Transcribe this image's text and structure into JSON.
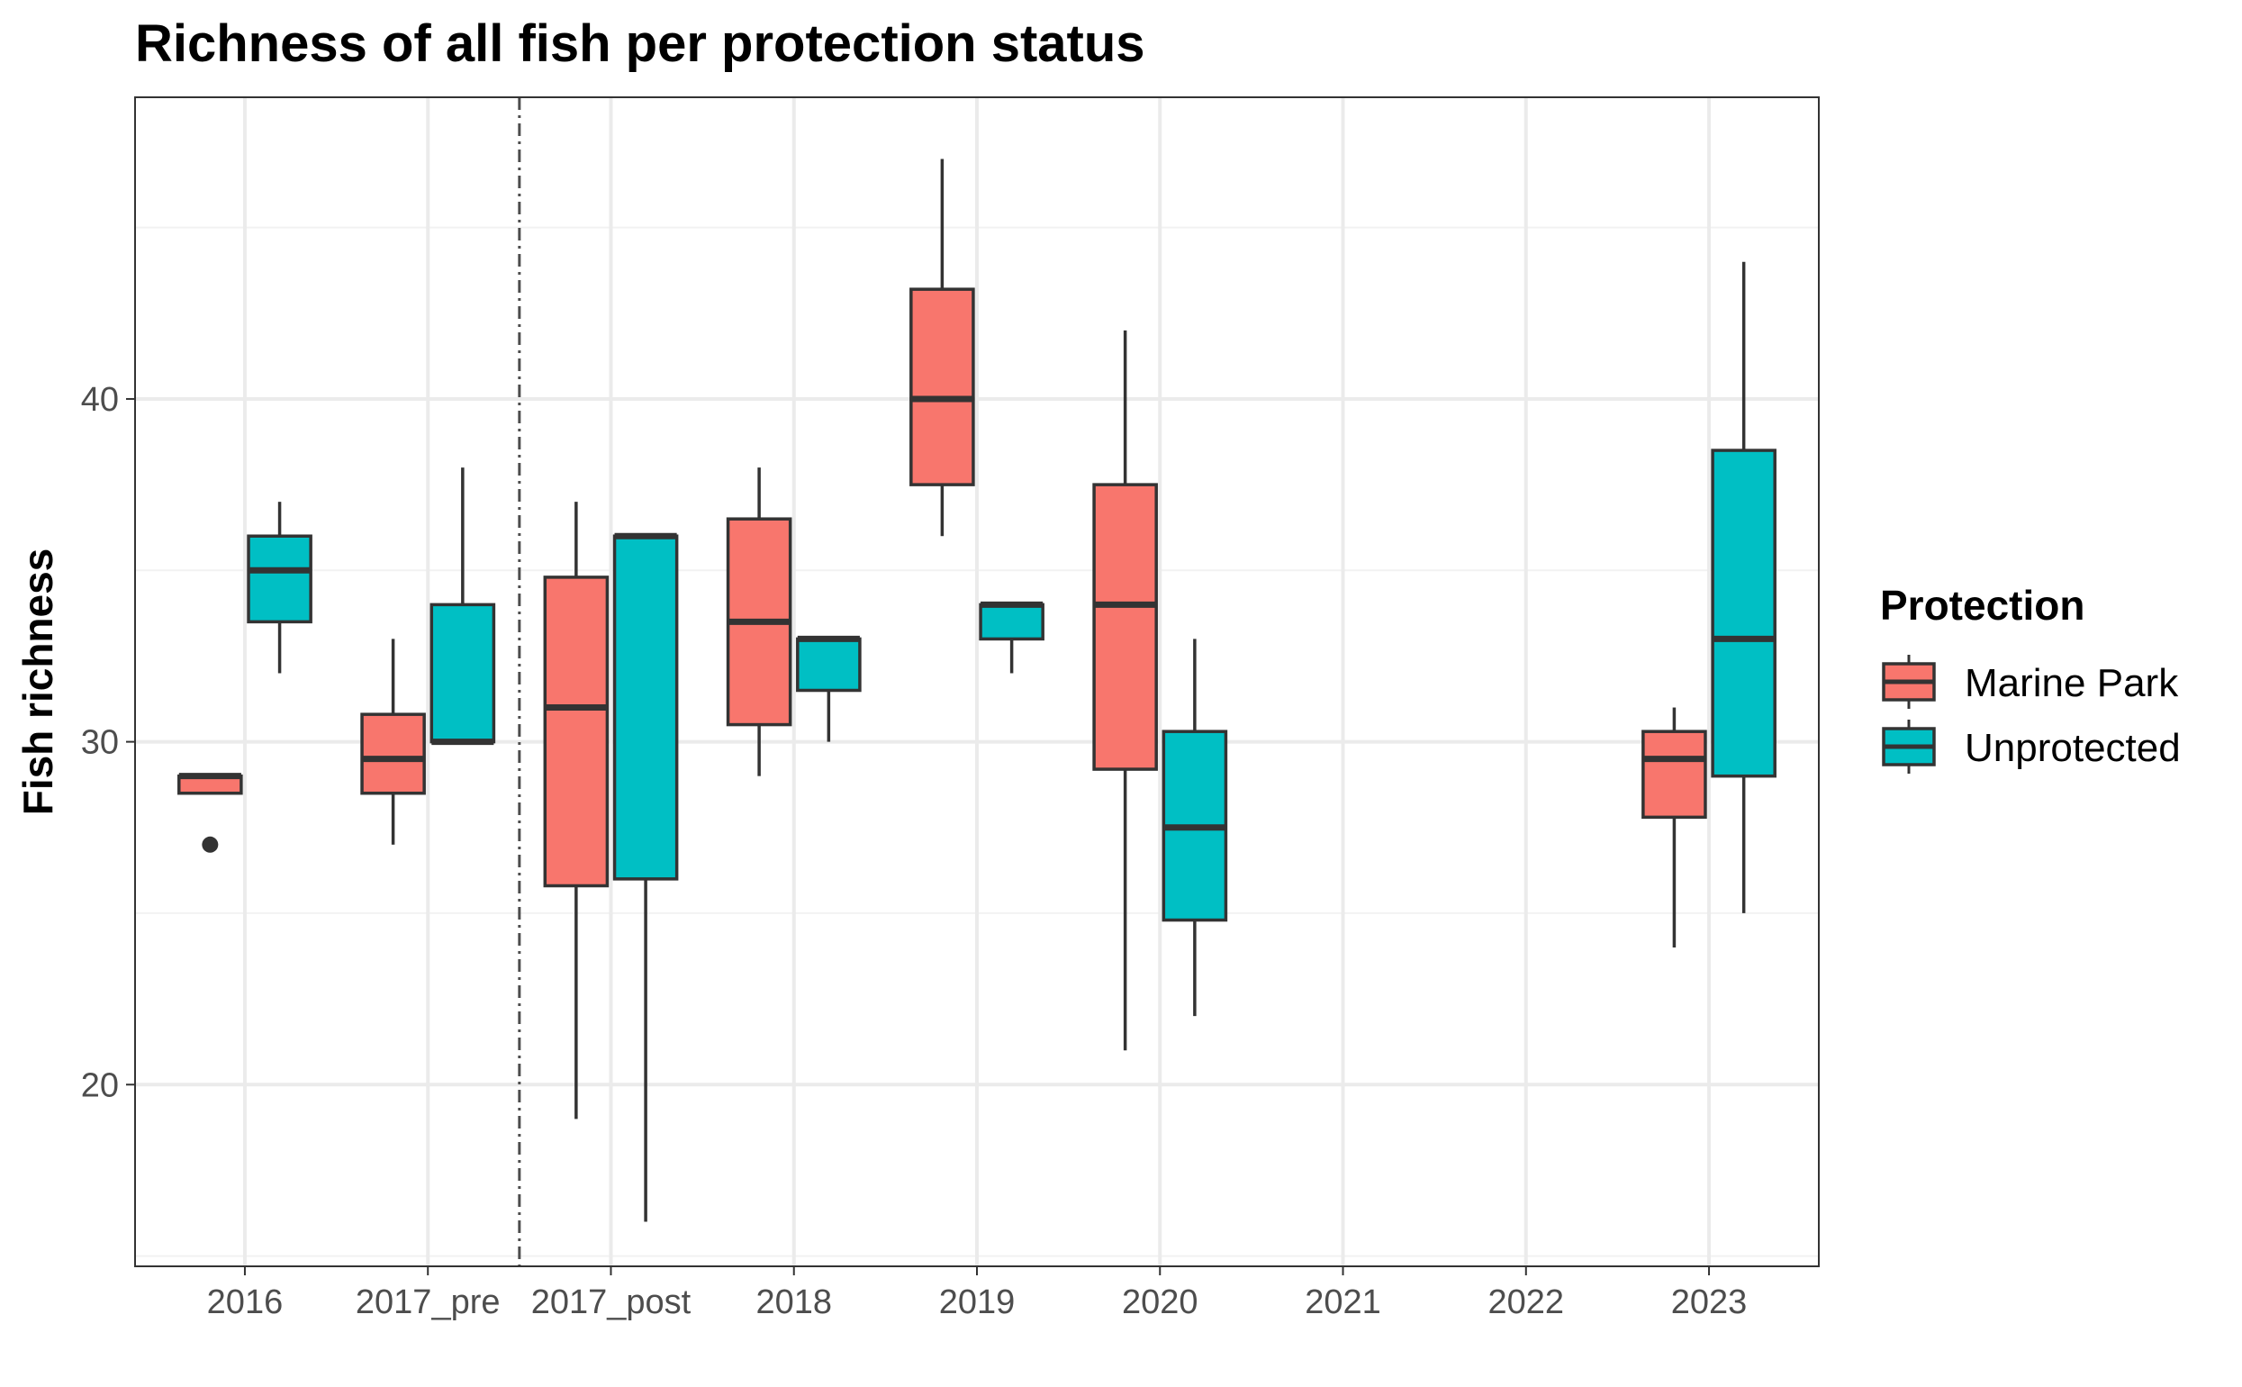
{
  "chart_data": {
    "type": "box",
    "title": "Richness of all fish per protection status",
    "xlabel": "",
    "ylabel": "Fish richness",
    "categories": [
      "2016",
      "2017_pre",
      "2017_post",
      "2018",
      "2019",
      "2020",
      "2021",
      "2022",
      "2023"
    ],
    "yticks": [
      20,
      30,
      40
    ],
    "ylim": [
      14.7,
      48.8
    ],
    "grid": true,
    "vline": {
      "between": [
        "2017_pre",
        "2017_post"
      ],
      "style": "dotdash"
    },
    "legend": {
      "title": "Protection",
      "position": "right"
    },
    "series": [
      {
        "name": "Marine Park",
        "color": "#F8766D",
        "boxes": [
          {
            "category": "2016",
            "min": 28.5,
            "q1": 28.5,
            "median": 29,
            "q3": 29,
            "max": 29,
            "outliers": [
              27
            ]
          },
          {
            "category": "2017_pre",
            "min": 27,
            "q1": 28.5,
            "median": 29.5,
            "q3": 30.8,
            "max": 33,
            "outliers": []
          },
          {
            "category": "2017_post",
            "min": 19,
            "q1": 25.8,
            "median": 31,
            "q3": 34.8,
            "max": 37,
            "outliers": []
          },
          {
            "category": "2018",
            "min": 29,
            "q1": 30.5,
            "median": 33.5,
            "q3": 36.5,
            "max": 38,
            "outliers": []
          },
          {
            "category": "2019",
            "min": 36,
            "q1": 37.5,
            "median": 40,
            "q3": 43.2,
            "max": 47,
            "outliers": []
          },
          {
            "category": "2020",
            "min": 21,
            "q1": 29.2,
            "median": 34,
            "q3": 37.5,
            "max": 42,
            "outliers": []
          },
          {
            "category": "2023",
            "min": 24,
            "q1": 27.8,
            "median": 29.5,
            "q3": 30.3,
            "max": 31,
            "outliers": []
          }
        ]
      },
      {
        "name": "Unprotected",
        "color": "#00BFC4",
        "boxes": [
          {
            "category": "2016",
            "min": 32,
            "q1": 33.5,
            "median": 35,
            "q3": 36,
            "max": 37,
            "outliers": []
          },
          {
            "category": "2017_pre",
            "min": 30,
            "q1": 30,
            "median": 30,
            "q3": 34,
            "max": 38,
            "outliers": []
          },
          {
            "category": "2017_post",
            "min": 16,
            "q1": 26,
            "median": 36,
            "q3": 36,
            "max": 36,
            "outliers": []
          },
          {
            "category": "2018",
            "min": 30,
            "q1": 31.5,
            "median": 33,
            "q3": 33,
            "max": 33,
            "outliers": []
          },
          {
            "category": "2019",
            "min": 32,
            "q1": 33,
            "median": 34,
            "q3": 34,
            "max": 34,
            "outliers": []
          },
          {
            "category": "2020",
            "min": 22,
            "q1": 24.8,
            "median": 27.5,
            "q3": 30.3,
            "max": 33,
            "outliers": []
          },
          {
            "category": "2023",
            "min": 25,
            "q1": 29,
            "median": 33,
            "q3": 38.5,
            "max": 44,
            "outliers": []
          }
        ]
      }
    ]
  }
}
